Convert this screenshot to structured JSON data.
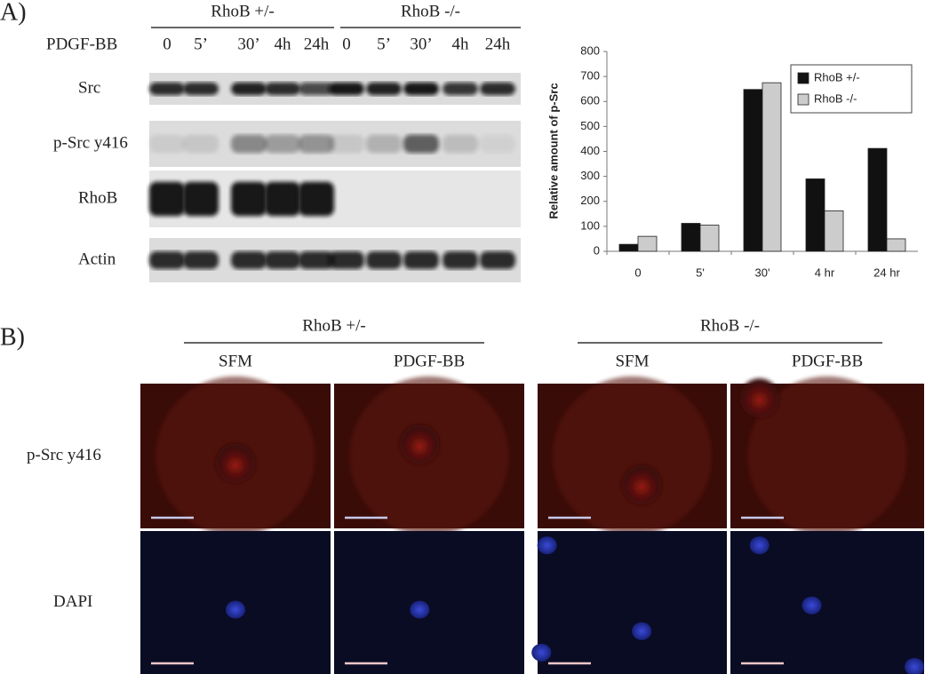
{
  "chart_data": {
    "type": "bar",
    "ylabel": "Relative amount of p-Src",
    "categories": [
      "0",
      "5'",
      "30'",
      "4 hr",
      "24 hr"
    ],
    "series": [
      {
        "name": "RhoB +/-",
        "color": "#111111",
        "values": [
          28,
          112,
          648,
          290,
          412
        ]
      },
      {
        "name": "RhoB -/-",
        "color": "#cccccc",
        "values": [
          60,
          105,
          675,
          162,
          50
        ]
      }
    ],
    "ylim": [
      0,
      800
    ],
    "yticks": [
      0,
      100,
      200,
      300,
      400,
      500,
      600,
      700,
      800
    ],
    "legend": "upper right"
  },
  "panel_a": {
    "label": "A)",
    "treatment": "PDGF-BB",
    "groups": [
      {
        "name": "RhoB +/-",
        "timepoints": [
          "0",
          "5’",
          "30’",
          "4h",
          "24h"
        ]
      },
      {
        "name": "RhoB -/-",
        "timepoints": [
          "0",
          "5’",
          "30’",
          "4h",
          "24h"
        ]
      }
    ],
    "rows": [
      "Src",
      "p-Src y416",
      "RhoB",
      "Actin"
    ]
  },
  "panel_b": {
    "label": "B)",
    "groups": [
      {
        "name": "RhoB +/-",
        "conditions": [
          "SFM",
          "PDGF-BB"
        ]
      },
      {
        "name": "RhoB -/-",
        "conditions": [
          "SFM",
          "PDGF-BB"
        ]
      }
    ],
    "rows": [
      "p-Src y416",
      "DAPI"
    ]
  }
}
